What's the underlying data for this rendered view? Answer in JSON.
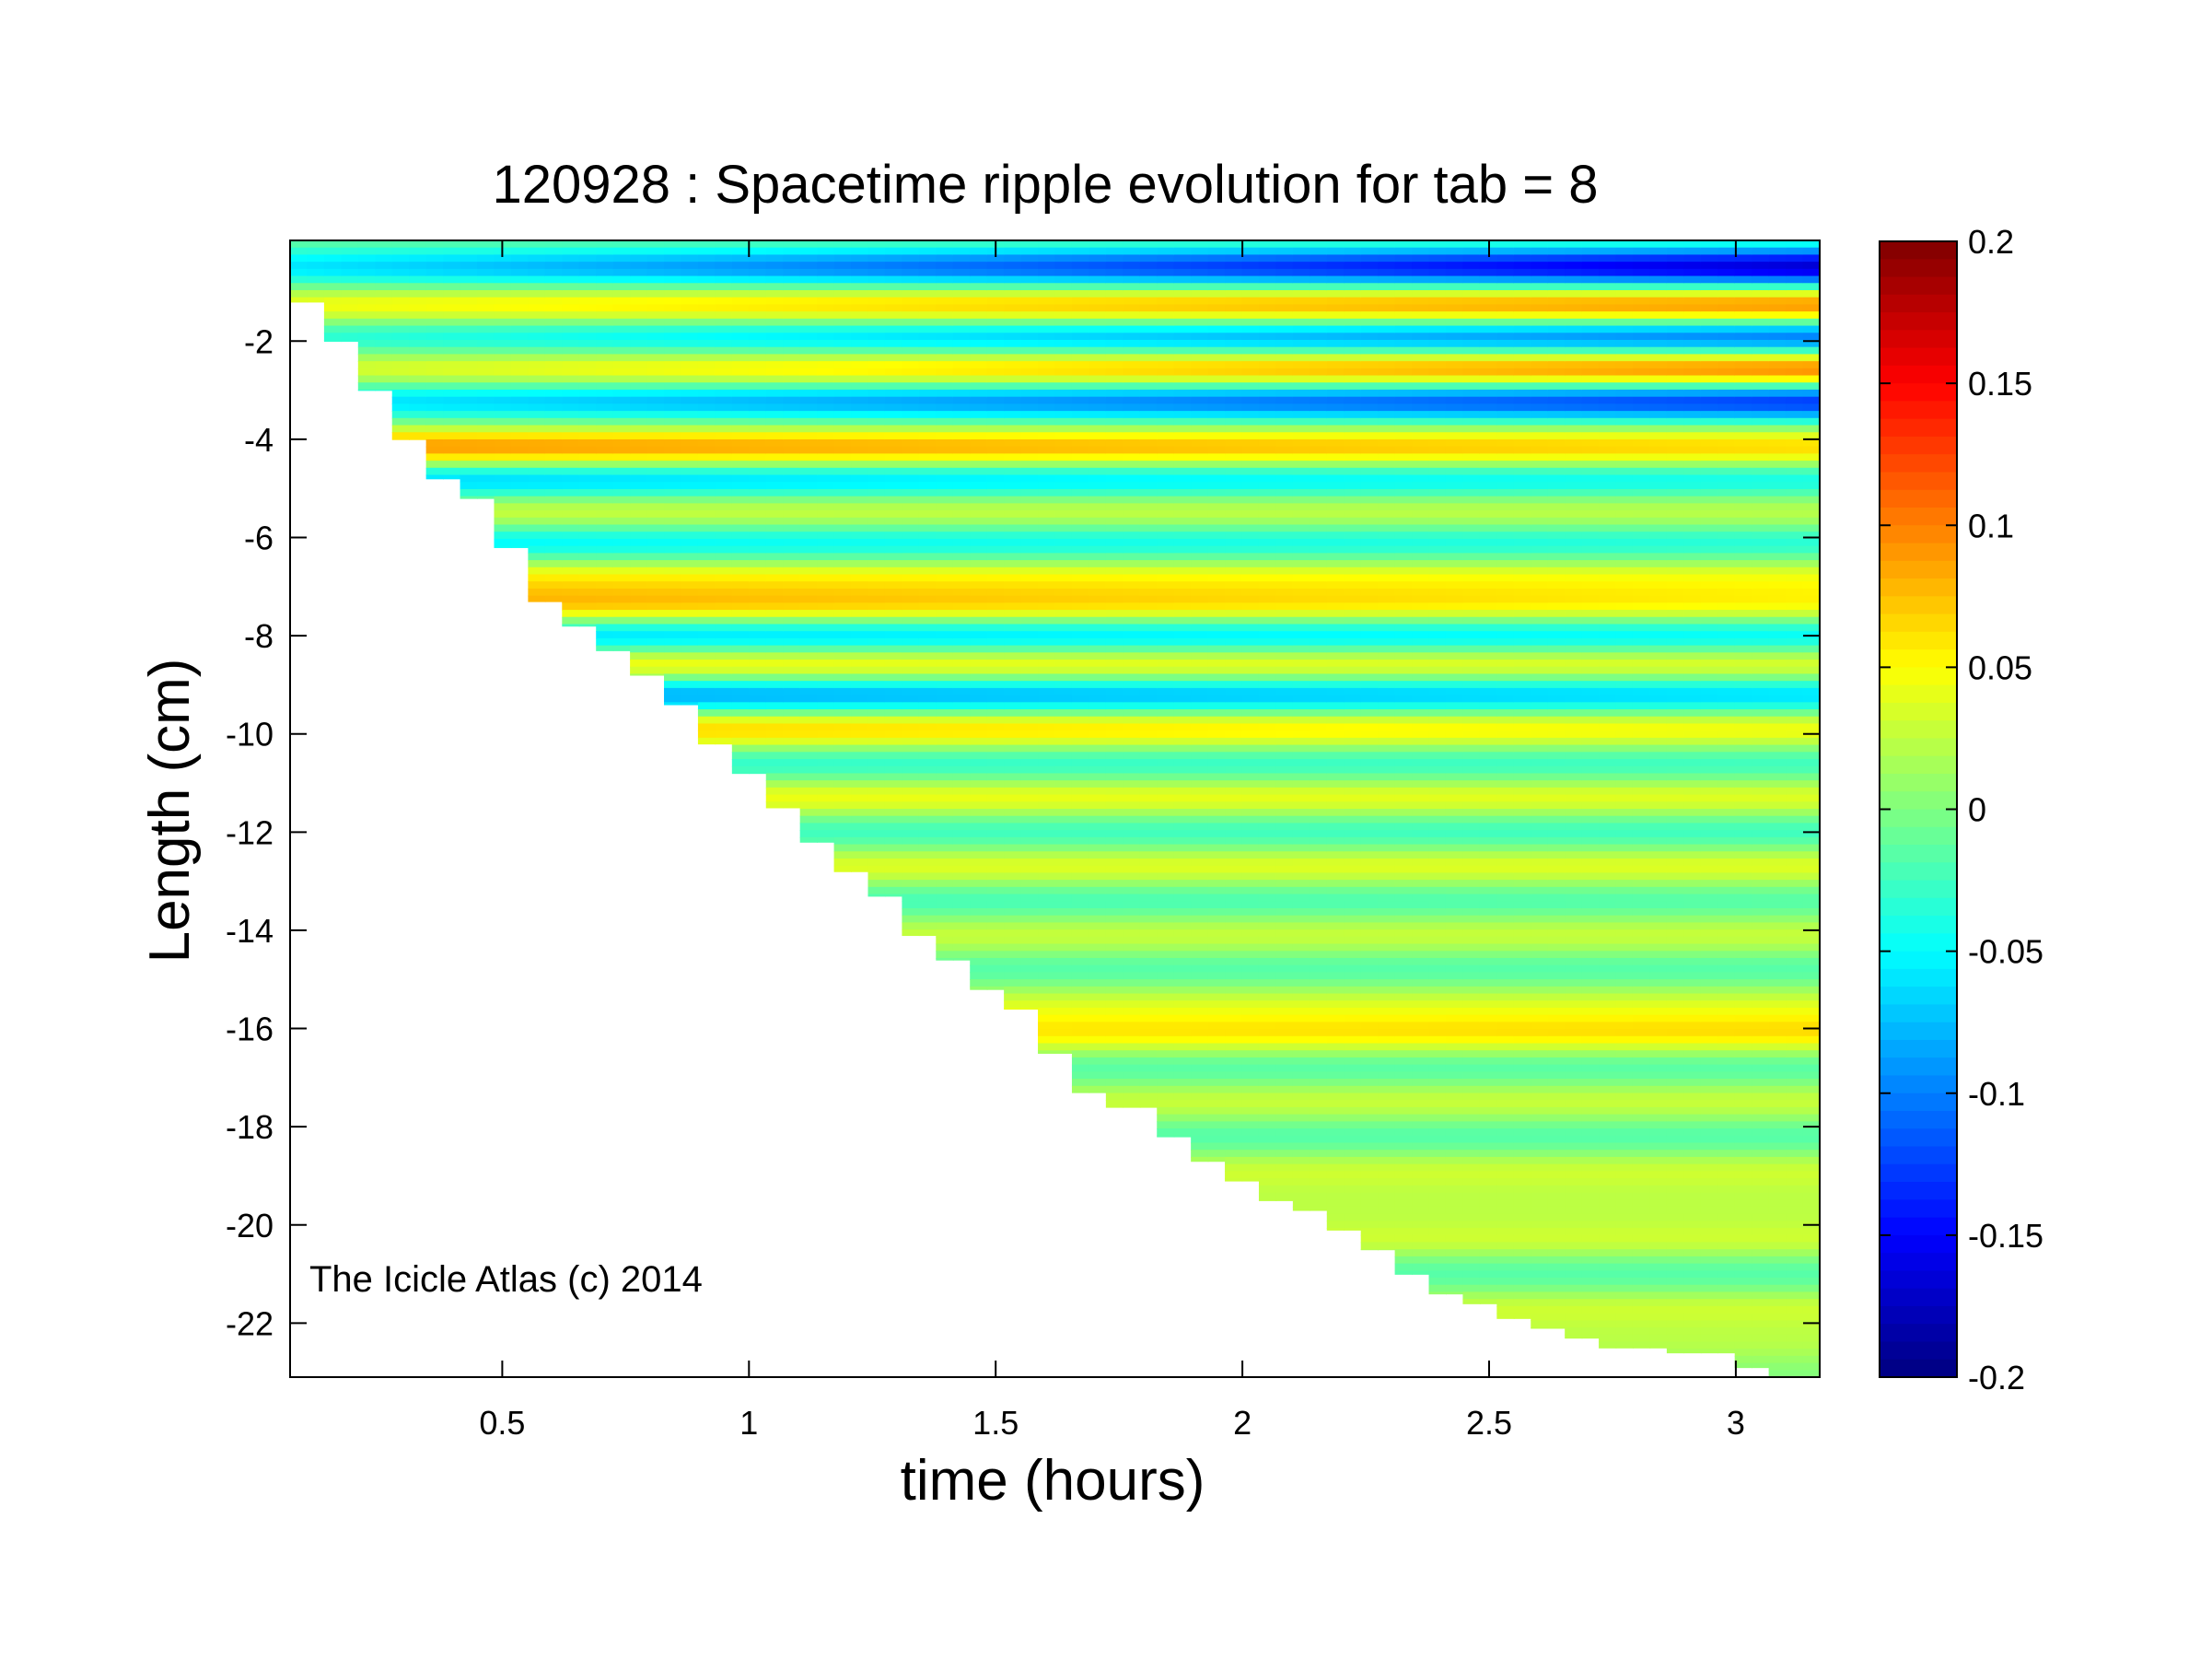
{
  "chart_data": {
    "type": "heatmap",
    "title": "120928 : Spacetime ripple evolution for tab = 8",
    "xlabel": "time (hours)",
    "ylabel": "Length (cm)",
    "xlim": [
      0.07,
      3.17
    ],
    "ylim": [
      -23.1,
      0.05
    ],
    "x_ticks": [
      0.5,
      1,
      1.5,
      2,
      2.5,
      3
    ],
    "x_tick_labels": [
      "0.5",
      "1",
      "1.5",
      "2",
      "2.5",
      "3"
    ],
    "y_ticks": [
      -2,
      -4,
      -6,
      -8,
      -10,
      -12,
      -14,
      -16,
      -18,
      -20,
      -22
    ],
    "y_tick_labels": [
      "-2",
      "-4",
      "-6",
      "-8",
      "-10",
      "-12",
      "-14",
      "-16",
      "-18",
      "-20",
      "-22"
    ],
    "colorbar": {
      "colormap": "jet",
      "range": [
        -0.2,
        0.2
      ],
      "ticks": [
        0.2,
        0.15,
        0.1,
        0.05,
        0,
        -0.05,
        -0.1,
        -0.15,
        -0.2
      ],
      "tick_labels": [
        "0.2",
        "0.15",
        "0.1",
        "0.05",
        "0",
        "-0.05",
        "-0.1",
        "-0.15",
        "-0.2"
      ]
    },
    "grid": false,
    "boundary": {
      "description_of_data": "Field defined for y between the growing icicle tip and 0; tip position versus time",
      "t": [
        0.07,
        0.14,
        0.21,
        0.28,
        0.35,
        0.42,
        0.5,
        0.56,
        0.63,
        0.7,
        0.77,
        0.84,
        0.9,
        0.98,
        1.04,
        1.11,
        1.18,
        1.25,
        1.32,
        1.39,
        1.46,
        1.53,
        1.6,
        1.67,
        1.74,
        1.81,
        1.88,
        1.95,
        2.02,
        2.09,
        2.16,
        2.23,
        2.3,
        2.37,
        2.44,
        2.51,
        2.58,
        2.65,
        2.72,
        2.79,
        2.86,
        2.93,
        3.0,
        3.07,
        3.17
      ],
      "tip": [
        -1.2,
        -2.0,
        -3.0,
        -4.0,
        -4.8,
        -5.2,
        -6.2,
        -7.3,
        -7.8,
        -8.3,
        -8.8,
        -9.4,
        -10.2,
        -10.8,
        -11.5,
        -12.2,
        -12.8,
        -13.3,
        -14.1,
        -14.6,
        -15.2,
        -15.6,
        -16.5,
        -17.3,
        -17.6,
        -18.2,
        -18.7,
        -19.1,
        -19.5,
        -19.7,
        -20.1,
        -20.5,
        -21.0,
        -21.4,
        -21.6,
        -21.9,
        -22.1,
        -22.3,
        -22.5,
        -22.5,
        -22.6,
        -22.6,
        -22.9,
        -23.1,
        -23.1
      ]
    },
    "bands": [
      {
        "y": -0.5,
        "value": -0.06,
        "value_late": -0.17
      },
      {
        "y": -1.3,
        "value": 0.05,
        "value_late": 0.11
      },
      {
        "y": -1.9,
        "value": -0.04,
        "value_late": -0.12
      },
      {
        "y": -2.6,
        "value": 0.04,
        "value_late": 0.12
      },
      {
        "y": -3.2,
        "value": -0.06,
        "value_late": -0.14
      },
      {
        "y": -4.2,
        "value": 0.1,
        "value_late": 0.07
      },
      {
        "y": -4.8,
        "value": -0.08,
        "value_late": -0.05
      },
      {
        "y": -5.5,
        "value": 0.04,
        "value_late": 0.03
      },
      {
        "y": -6.1,
        "value": -0.06,
        "value_late": -0.04
      },
      {
        "y": -6.8,
        "value": 0.05,
        "value_late": 0.04
      },
      {
        "y": -7.4,
        "value": 0.08,
        "value_late": 0.05
      },
      {
        "y": -8.0,
        "value": -0.08,
        "value_late": -0.06
      },
      {
        "y": -8.6,
        "value": 0.07,
        "value_late": 0.05
      },
      {
        "y": -9.2,
        "value": -0.1,
        "value_late": -0.07
      },
      {
        "y": -9.9,
        "value": 0.08,
        "value_late": 0.05
      },
      {
        "y": -10.6,
        "value": -0.04,
        "value_late": -0.03
      },
      {
        "y": -11.3,
        "value": 0.05,
        "value_late": 0.04
      },
      {
        "y": -12.0,
        "value": -0.03,
        "value_late": -0.03
      },
      {
        "y": -12.7,
        "value": 0.04,
        "value_late": 0.04
      },
      {
        "y": -13.4,
        "value": -0.03,
        "value_late": -0.02
      },
      {
        "y": -14.1,
        "value": 0.03,
        "value_late": 0.03
      },
      {
        "y": -14.8,
        "value": -0.02,
        "value_late": -0.02
      },
      {
        "y": -15.5,
        "value": 0.03,
        "value_late": 0.03
      },
      {
        "y": -16.1,
        "value": 0.05,
        "value_late": 0.06
      },
      {
        "y": -16.8,
        "value": -0.02,
        "value_late": -0.02
      },
      {
        "y": -17.5,
        "value": 0.03,
        "value_late": 0.03
      },
      {
        "y": -18.2,
        "value": -0.02,
        "value_late": -0.02
      },
      {
        "y": -18.9,
        "value": 0.03,
        "value_late": 0.03
      },
      {
        "y": -19.6,
        "value": 0.02,
        "value_late": 0.02
      },
      {
        "y": -20.3,
        "value": 0.03,
        "value_late": 0.03
      },
      {
        "y": -21.0,
        "value": -0.02,
        "value_late": -0.02
      },
      {
        "y": -21.7,
        "value": 0.03,
        "value_late": 0.03
      },
      {
        "y": -22.4,
        "value": 0.02,
        "value_late": 0.02
      }
    ]
  },
  "watermark": "The Icicle Atlas (c) 2014"
}
